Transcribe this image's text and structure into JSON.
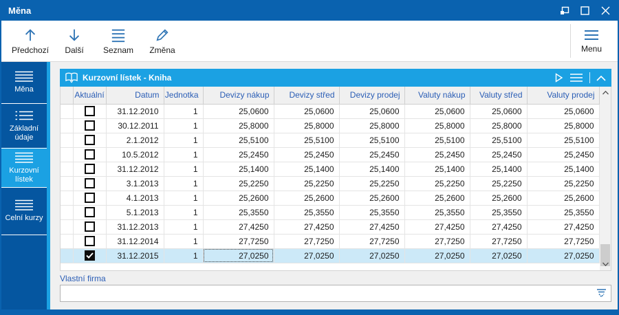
{
  "window": {
    "title": "Měna"
  },
  "titlebar": {
    "control_icons": [
      "restore-icon",
      "maximize-icon",
      "close-icon"
    ]
  },
  "toolbar": {
    "buttons": [
      {
        "label": "Předchozí",
        "icon": "arrow-up-icon"
      },
      {
        "label": "Další",
        "icon": "arrow-down-icon"
      },
      {
        "label": "Seznam",
        "icon": "list-icon"
      },
      {
        "label": "Změna",
        "icon": "pencil-icon"
      }
    ],
    "menu": {
      "label": "Menu",
      "icon": "menu-icon"
    }
  },
  "sidebar": {
    "items": [
      {
        "label": "Měna",
        "icon": "menu-lines-icon",
        "selected": false
      },
      {
        "label": "Základní údaje",
        "icon": "detail-list-icon",
        "selected": false
      },
      {
        "label": "Kurzovní lístek",
        "icon": "menu-lines-icon",
        "selected": true
      },
      {
        "label": "Celní kurzy",
        "icon": "menu-lines-icon",
        "selected": false
      }
    ]
  },
  "panel": {
    "title": "Kurzovní lístek - Kniha",
    "header_icons": [
      "book-icon",
      "play-icon",
      "list-icon",
      "chevron-up-icon"
    ]
  },
  "table": {
    "columns": [
      "",
      "Aktuální",
      "Datum",
      "Jednotka",
      "Devizy nákup",
      "Devizy střed",
      "Devizy prodej",
      "Valuty nákup",
      "Valuty střed",
      "Valuty prodej"
    ],
    "selected_row": 10,
    "focused_cell_column": "devizy_nakup",
    "rows": [
      {
        "checked": false,
        "datum": "31.12.2010",
        "jednotka": "1",
        "devizy_nakup": "25,0600",
        "devizy_stred": "25,0600",
        "devizy_prodej": "25,0600",
        "valuty_nakup": "25,0600",
        "valuty_stred": "25,0600",
        "valuty_prodej": "25,0600"
      },
      {
        "checked": false,
        "datum": "30.12.2011",
        "jednotka": "1",
        "devizy_nakup": "25,8000",
        "devizy_stred": "25,8000",
        "devizy_prodej": "25,8000",
        "valuty_nakup": "25,8000",
        "valuty_stred": "25,8000",
        "valuty_prodej": "25,8000"
      },
      {
        "checked": false,
        "datum": "2.1.2012",
        "jednotka": "1",
        "devizy_nakup": "25,5100",
        "devizy_stred": "25,5100",
        "devizy_prodej": "25,5100",
        "valuty_nakup": "25,5100",
        "valuty_stred": "25,5100",
        "valuty_prodej": "25,5100"
      },
      {
        "checked": false,
        "datum": "10.5.2012",
        "jednotka": "1",
        "devizy_nakup": "25,2450",
        "devizy_stred": "25,2450",
        "devizy_prodej": "25,2450",
        "valuty_nakup": "25,2450",
        "valuty_stred": "25,2450",
        "valuty_prodej": "25,2450"
      },
      {
        "checked": false,
        "datum": "31.12.2012",
        "jednotka": "1",
        "devizy_nakup": "25,1400",
        "devizy_stred": "25,1400",
        "devizy_prodej": "25,1400",
        "valuty_nakup": "25,1400",
        "valuty_stred": "25,1400",
        "valuty_prodej": "25,1400"
      },
      {
        "checked": false,
        "datum": "3.1.2013",
        "jednotka": "1",
        "devizy_nakup": "25,2250",
        "devizy_stred": "25,2250",
        "devizy_prodej": "25,2250",
        "valuty_nakup": "25,2250",
        "valuty_stred": "25,2250",
        "valuty_prodej": "25,2250"
      },
      {
        "checked": false,
        "datum": "4.1.2013",
        "jednotka": "1",
        "devizy_nakup": "25,2600",
        "devizy_stred": "25,2600",
        "devizy_prodej": "25,2600",
        "valuty_nakup": "25,2600",
        "valuty_stred": "25,2600",
        "valuty_prodej": "25,2600"
      },
      {
        "checked": false,
        "datum": "5.1.2013",
        "jednotka": "1",
        "devizy_nakup": "25,3550",
        "devizy_stred": "25,3550",
        "devizy_prodej": "25,3550",
        "valuty_nakup": "25,3550",
        "valuty_stred": "25,3550",
        "valuty_prodej": "25,3550"
      },
      {
        "checked": false,
        "datum": "31.12.2013",
        "jednotka": "1",
        "devizy_nakup": "27,4250",
        "devizy_stred": "27,4250",
        "devizy_prodej": "27,4250",
        "valuty_nakup": "27,4250",
        "valuty_stred": "27,4250",
        "valuty_prodej": "27,4250"
      },
      {
        "checked": false,
        "datum": "31.12.2014",
        "jednotka": "1",
        "devizy_nakup": "27,7250",
        "devizy_stred": "27,7250",
        "devizy_prodej": "27,7250",
        "valuty_nakup": "27,7250",
        "valuty_stred": "27,7250",
        "valuty_prodej": "27,7250"
      },
      {
        "checked": true,
        "datum": "31.12.2015",
        "jednotka": "1",
        "devizy_nakup": "27,0250",
        "devizy_stred": "27,0250",
        "devizy_prodej": "27,0250",
        "valuty_nakup": "27,0250",
        "valuty_stred": "27,0250",
        "valuty_prodej": "27,0250"
      }
    ]
  },
  "form": {
    "label": "Vlastní firma",
    "value": "",
    "icon": "dropdown-icon"
  },
  "colors": {
    "titlebar": "#0a62af",
    "sidebar": "#0556a0",
    "accent": "#1ba1e3",
    "selected_row": "#cce9f8",
    "header_text": "#2a5db5"
  }
}
